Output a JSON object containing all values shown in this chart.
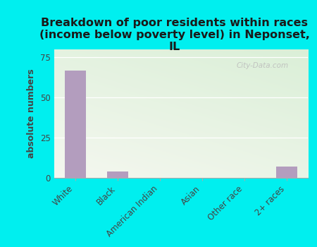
{
  "categories": [
    "White",
    "Black",
    "American Indian",
    "Asian",
    "Other race",
    "2+ races"
  ],
  "values": [
    67,
    4,
    0,
    0,
    0,
    7
  ],
  "bar_color": "#b39dbe",
  "title": "Breakdown of poor residents within races\n(income below poverty level) in Neponset,\nIL",
  "ylabel": "absolute numbers",
  "ylim": [
    0,
    80
  ],
  "yticks": [
    0,
    25,
    50,
    75
  ],
  "background_color": "#00efef",
  "watermark": "City-Data.com",
  "title_fontsize": 11.5,
  "ylabel_fontsize": 9,
  "tick_fontsize": 8.5,
  "title_color": "#1a1a1a"
}
